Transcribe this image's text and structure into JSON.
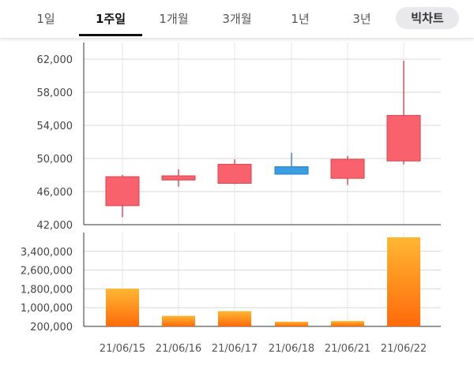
{
  "tabs": [
    {
      "label": "1일",
      "active": false
    },
    {
      "label": "1주일",
      "active": true
    },
    {
      "label": "1개월",
      "active": false
    },
    {
      "label": "3개월",
      "active": false
    },
    {
      "label": "1년",
      "active": false
    },
    {
      "label": "3년",
      "active": false
    }
  ],
  "pill_label": "빅차트",
  "colors": {
    "up": "#f9626c",
    "up_border": "#d9424e",
    "down": "#3a9ee2",
    "down_border": "#2b7fbf",
    "volume_top": "#ffb733",
    "volume_bottom": "#ff6a0a",
    "grid": "#d8d8d8",
    "axis": "#333333"
  },
  "chart_data": [
    {
      "type": "candlestick",
      "categories": [
        "21/06/15",
        "21/06/16",
        "21/06/17",
        "21/06/18",
        "21/06/21",
        "21/06/22"
      ],
      "open": [
        44300,
        47400,
        47000,
        49000,
        47600,
        49700
      ],
      "close": [
        47800,
        47900,
        49300,
        48100,
        49900,
        55200
      ],
      "high": [
        48000,
        48700,
        49900,
        50700,
        50300,
        61800
      ],
      "low": [
        42900,
        46600,
        46900,
        48100,
        46800,
        49300
      ],
      "yticks": [
        "62,000",
        "58,000",
        "54,000",
        "50,000",
        "46,000",
        "42,000"
      ],
      "ylim": [
        42000,
        64000
      ],
      "grid": true
    },
    {
      "type": "bar",
      "categories": [
        "21/06/15",
        "21/06/16",
        "21/06/17",
        "21/06/18",
        "21/06/21",
        "21/06/22"
      ],
      "values": [
        1810000,
        650000,
        850000,
        400000,
        430000,
        4000000
      ],
      "yticks": [
        "3,400,000",
        "2,600,000",
        "1,800,000",
        "1,000,000",
        "200,000"
      ],
      "ylim": [
        200000,
        4200000
      ],
      "grid": true
    }
  ]
}
